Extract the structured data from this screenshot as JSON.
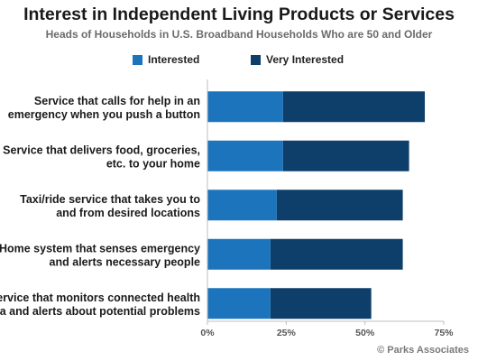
{
  "title": "Interest in Independent Living Products or Services",
  "subtitle": "Heads of Households in U.S. Broadband Households Who are 50 and Older",
  "credit": "© Parks Associates",
  "colors": {
    "interested": "#1c75bc",
    "very_interested": "#0d3f6a",
    "axis": "#bfbfbf"
  },
  "chart_data": {
    "type": "bar",
    "orientation": "horizontal",
    "stacked": true,
    "categories": [
      [
        "Service that calls for help in an",
        "emergency when you push a button"
      ],
      [
        "Service that delivers food, groceries,",
        "etc. to your home"
      ],
      [
        "Taxi/ride service that takes you to",
        "and from desired locations"
      ],
      [
        "Home system that senses emergency",
        "and alerts necessary people"
      ],
      [
        "Service that monitors connected health",
        "data and alerts about potential problems"
      ]
    ],
    "series": [
      {
        "name": "Interested",
        "values": [
          24,
          24,
          22,
          20,
          20
        ]
      },
      {
        "name": "Very Interested",
        "values": [
          45,
          40,
          40,
          42,
          32
        ]
      }
    ],
    "xlim": [
      0,
      75
    ],
    "ticks": [
      0,
      25,
      50,
      75
    ],
    "tick_labels": [
      "0%",
      "25%",
      "50%",
      "75%"
    ],
    "legend": "top",
    "grid": false
  }
}
